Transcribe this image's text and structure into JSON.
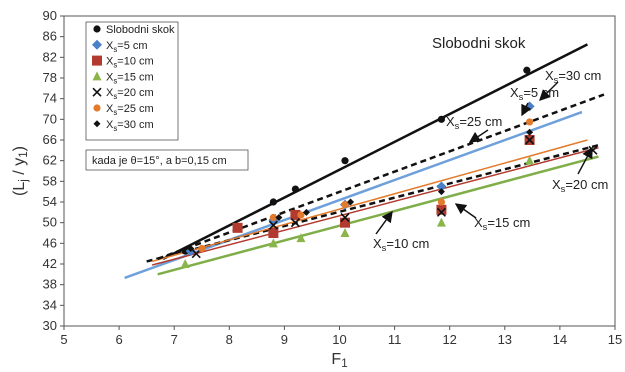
{
  "chart_data": {
    "type": "scatter",
    "xlabel": "F",
    "xlabel_sub": "1",
    "ylabel_parts": [
      "(L",
      "j",
      " / y",
      "1",
      ")"
    ],
    "xlim": [
      5,
      15
    ],
    "ylim": [
      30,
      90
    ],
    "xticks": [
      5,
      6,
      7,
      8,
      9,
      10,
      11,
      12,
      13,
      14,
      15
    ],
    "yticks": [
      30,
      34,
      38,
      42,
      46,
      50,
      54,
      58,
      62,
      66,
      70,
      74,
      78,
      82,
      86,
      90
    ],
    "grid": false,
    "legend_position": "top-left",
    "note": "kada je θ=15°, a b=0,15 cm",
    "series": [
      {
        "name": "Slobodni skok",
        "color": "#111111",
        "marker": "circle",
        "points": [
          [
            7.2,
            44.5
          ],
          [
            8.8,
            54
          ],
          [
            9.2,
            56.5
          ],
          [
            10.1,
            62
          ],
          [
            11.85,
            70
          ],
          [
            13.4,
            79.5
          ]
        ],
        "line": {
          "x": [
            6.8,
            14.5
          ],
          "y": [
            43.0,
            84.5
          ],
          "style": "solid",
          "color": "#111111",
          "width": 2.5
        }
      },
      {
        "name": "X",
        "sub": "s",
        "label_suffix": "=5  cm",
        "color": "#4a80c8",
        "marker": "diamond",
        "points": [
          [
            7.3,
            44.5
          ],
          [
            8.8,
            50.5
          ],
          [
            9.2,
            51.5
          ],
          [
            10.1,
            53.5
          ],
          [
            11.85,
            57
          ],
          [
            13.45,
            72.5
          ]
        ],
        "line": {
          "x": [
            6.1,
            14.4
          ],
          "y": [
            39.3,
            71.4
          ],
          "style": "solid",
          "color": "#6ea0dc",
          "width": 2.5
        }
      },
      {
        "name": "X",
        "sub": "s",
        "label_suffix": "=10 cm",
        "color": "#b33a2e",
        "marker": "square",
        "points": [
          [
            8.15,
            49
          ],
          [
            8.8,
            48
          ],
          [
            9.2,
            51.5
          ],
          [
            10.1,
            50
          ],
          [
            11.85,
            52.5
          ],
          [
            13.45,
            66
          ]
        ],
        "line": {
          "x": [
            6.6,
            14.7
          ],
          "y": [
            41.8,
            64.5
          ],
          "style": "solid",
          "color": "#b33a2e",
          "width": 1.5
        }
      },
      {
        "name": "X",
        "sub": "s",
        "label_suffix": "=15 cm",
        "color": "#8ab54a",
        "marker": "triangle",
        "points": [
          [
            7.2,
            42
          ],
          [
            8.8,
            46
          ],
          [
            9.3,
            47
          ],
          [
            10.1,
            48
          ],
          [
            11.85,
            50
          ],
          [
            13.45,
            62
          ]
        ],
        "line": {
          "x": [
            6.7,
            14.7
          ],
          "y": [
            40.0,
            62.8
          ],
          "style": "solid",
          "color": "#7fae48",
          "width": 2.5
        }
      },
      {
        "name": "X",
        "sub": "s",
        "label_suffix": "=20 cm",
        "color": "#111111",
        "marker": "x",
        "points": [
          [
            7.4,
            44
          ],
          [
            8.8,
            49.5
          ],
          [
            9.2,
            50
          ],
          [
            10.1,
            51
          ],
          [
            11.85,
            52
          ],
          [
            13.45,
            66
          ],
          [
            14.6,
            64
          ]
        ],
        "line": {
          "x": [
            6.5,
            14.7
          ],
          "y": [
            42.5,
            65.0
          ],
          "style": "dash",
          "color": "#111111",
          "width": 2.5
        }
      },
      {
        "name": "X",
        "sub": "s",
        "label_suffix": "=25 cm",
        "color": "#e37b2c",
        "marker": "circle",
        "points": [
          [
            7.5,
            45
          ],
          [
            8.8,
            51
          ],
          [
            9.3,
            51.5
          ],
          [
            10.1,
            53.5
          ],
          [
            11.85,
            54
          ],
          [
            13.45,
            69.5
          ]
        ],
        "line": {
          "x": [
            6.6,
            14.5
          ],
          "y": [
            42.5,
            66.0
          ],
          "style": "solid",
          "color": "#e37b2c",
          "width": 1.5
        }
      },
      {
        "name": "X",
        "sub": "s",
        "label_suffix": "=30 cm",
        "color": "#111111",
        "marker": "small-diamond",
        "points": [
          [
            7.3,
            45
          ],
          [
            8.9,
            51
          ],
          [
            9.4,
            52
          ],
          [
            10.2,
            54
          ],
          [
            11.85,
            56
          ],
          [
            13.45,
            67.5
          ]
        ],
        "line": {
          "x": [
            6.7,
            14.8
          ],
          "y": [
            43.0,
            74.8
          ],
          "style": "dash",
          "color": "#111111",
          "width": 2.5
        }
      }
    ],
    "annotations": [
      {
        "kind": "plain",
        "text": "Slobodni skok",
        "big": true
      },
      {
        "kind": "xs",
        "text_main": "X",
        "text_sub": "s",
        "text_rest": "=30 cm"
      },
      {
        "kind": "xs",
        "text_main": "X",
        "text_sub": "s",
        "text_rest": "=5 cm"
      },
      {
        "kind": "xs",
        "text_main": "X",
        "text_sub": "s",
        "text_rest": "=25 cm"
      },
      {
        "kind": "xs",
        "text_main": "X",
        "text_sub": "s",
        "text_rest": "=20 cm"
      },
      {
        "kind": "xs",
        "text_main": "X",
        "text_sub": "s",
        "text_rest": "=15 cm"
      },
      {
        "kind": "xs",
        "text_main": "X",
        "text_sub": "s",
        "text_rest": "=10 cm"
      }
    ]
  }
}
